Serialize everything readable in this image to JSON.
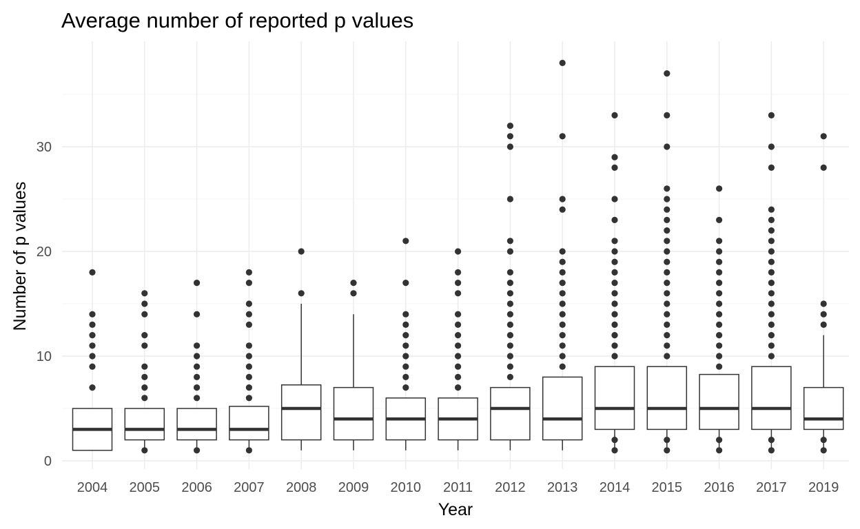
{
  "chart_data": {
    "type": "boxplot",
    "title": "Average number of reported p values",
    "xlabel": "Year",
    "ylabel": "Number of p values",
    "ylim": [
      -1,
      42.5
    ],
    "yticks": [
      0,
      10,
      20,
      30
    ],
    "grid": true,
    "legend": "none",
    "categories": [
      "2004",
      "2005",
      "2006",
      "2007",
      "2008",
      "2009",
      "2010",
      "2011",
      "2012",
      "2013",
      "2014",
      "2015",
      "2016",
      "2017",
      "2019"
    ],
    "boxes": [
      {
        "category": "2004",
        "min": 1,
        "q1": 1,
        "median": 3,
        "q3": 5,
        "max": 5,
        "outliers": [
          7,
          9,
          10,
          11,
          12,
          13,
          14,
          18
        ]
      },
      {
        "category": "2005",
        "min": 1,
        "q1": 2,
        "median": 3,
        "q3": 5,
        "max": 5,
        "outliers": [
          1,
          6,
          7,
          8,
          9,
          11,
          12,
          14,
          15,
          16
        ]
      },
      {
        "category": "2006",
        "min": 1,
        "q1": 2,
        "median": 3,
        "q3": 5,
        "max": 5,
        "outliers": [
          1,
          6,
          7,
          8,
          9,
          10,
          11,
          14,
          17
        ]
      },
      {
        "category": "2007",
        "min": 1,
        "q1": 2,
        "median": 3,
        "q3": 5.2,
        "max": 5.2,
        "outliers": [
          1,
          6,
          7,
          8,
          9,
          10,
          11,
          13,
          14,
          15,
          17,
          18
        ]
      },
      {
        "category": "2008",
        "min": 1,
        "q1": 2,
        "median": 5,
        "q3": 7.25,
        "max": 15,
        "outliers": [
          16,
          20
        ]
      },
      {
        "category": "2009",
        "min": 1,
        "q1": 2,
        "median": 4,
        "q3": 7,
        "max": 14,
        "outliers": [
          16,
          17
        ]
      },
      {
        "category": "2010",
        "min": 1,
        "q1": 2,
        "median": 4,
        "q3": 6,
        "max": 6,
        "outliers": [
          7,
          8,
          9,
          10,
          11,
          12,
          13,
          14,
          17,
          21
        ]
      },
      {
        "category": "2011",
        "min": 1,
        "q1": 2,
        "median": 4,
        "q3": 6,
        "max": 6,
        "outliers": [
          7,
          8,
          9,
          10,
          11,
          12,
          13,
          14,
          16,
          17,
          18,
          20
        ]
      },
      {
        "category": "2012",
        "min": 1,
        "q1": 2,
        "median": 5,
        "q3": 7,
        "max": 7,
        "outliers": [
          8,
          9,
          10,
          11,
          12,
          13,
          14,
          15,
          16,
          17,
          18,
          20,
          21,
          25,
          30,
          31,
          32
        ]
      },
      {
        "category": "2013",
        "min": 1,
        "q1": 2,
        "median": 4,
        "q3": 8,
        "max": 8,
        "outliers": [
          9,
          10,
          11,
          12,
          13,
          14,
          15,
          16,
          17,
          18,
          19,
          20,
          24,
          25,
          31,
          38
        ]
      },
      {
        "category": "2014",
        "min": 1,
        "q1": 3,
        "median": 5,
        "q3": 9,
        "max": 9,
        "outliers": [
          1,
          2,
          10,
          11,
          12,
          13,
          14,
          15,
          16,
          17,
          18,
          19,
          20,
          21,
          23,
          25,
          28,
          29,
          33
        ]
      },
      {
        "category": "2015",
        "min": 1,
        "q1": 3,
        "median": 5,
        "q3": 9,
        "max": 9,
        "outliers": [
          1,
          2,
          10,
          11,
          12,
          13,
          14,
          15,
          16,
          17,
          18,
          19,
          20,
          21,
          22,
          23,
          24,
          25,
          26,
          30,
          33,
          37
        ]
      },
      {
        "category": "2016",
        "min": 1,
        "q1": 3,
        "median": 5,
        "q3": 8.25,
        "max": 8.25,
        "outliers": [
          1,
          2,
          9,
          10,
          11,
          12,
          13,
          14,
          15,
          16,
          17,
          18,
          19,
          20,
          21,
          23,
          26
        ]
      },
      {
        "category": "2017",
        "min": 1,
        "q1": 3,
        "median": 5,
        "q3": 9,
        "max": 9,
        "outliers": [
          1,
          2,
          10,
          11,
          12,
          13,
          14,
          15,
          16,
          17,
          18,
          19,
          20,
          21,
          22,
          23,
          24,
          28,
          30,
          33
        ]
      },
      {
        "category": "2019",
        "min": 1,
        "q1": 3,
        "median": 4,
        "q3": 7,
        "max": 12,
        "outliers": [
          1,
          2,
          13,
          14,
          15,
          28,
          31
        ]
      }
    ],
    "colors": {
      "box_line": "#333333",
      "box_fill": "#ffffff",
      "grid_major": "#ebebeb",
      "grid_minor": "#f4f4f4",
      "tick_text": "#4d4d4d",
      "title_text": "#000000"
    }
  }
}
